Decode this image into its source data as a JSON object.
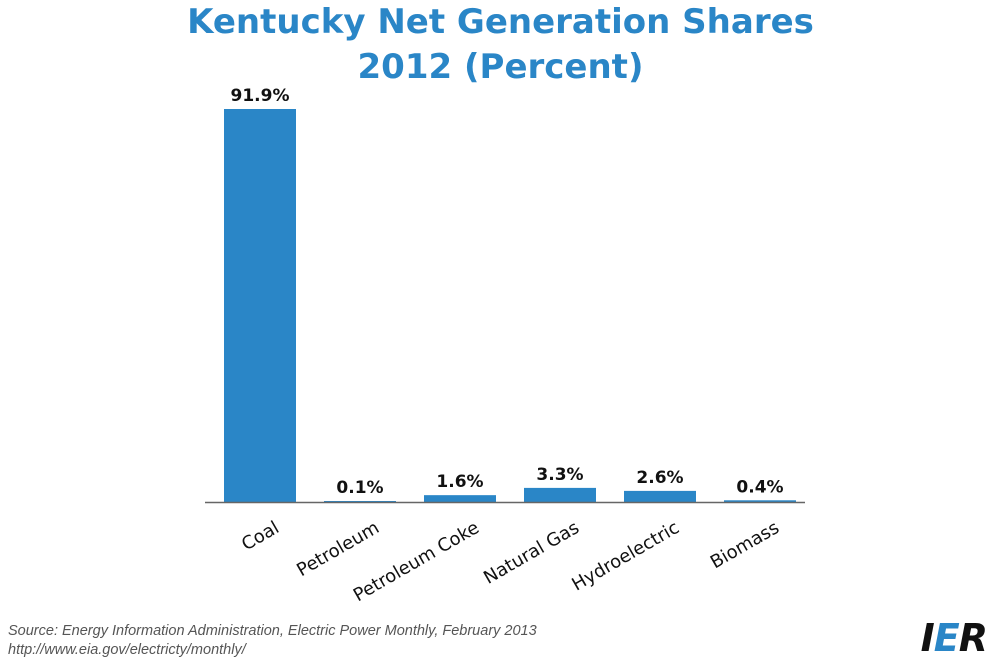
{
  "chart_data": {
    "type": "bar",
    "title_line1": "Kentucky Net Generation Shares",
    "title_line2": "2012 (Percent)",
    "categories": [
      "Coal",
      "Petroleum",
      "Petroleum Coke",
      "Natural Gas",
      "Hydroelectric",
      "Biomass"
    ],
    "values": [
      91.9,
      0.1,
      1.6,
      3.3,
      2.6,
      0.4
    ],
    "value_labels": [
      "91.9%",
      "0.1%",
      "1.6%",
      "3.3%",
      "2.6%",
      "0.4%"
    ],
    "ylim": [
      0,
      91.9
    ],
    "grid": false,
    "legend": "none",
    "bar_color": "#2a86c7",
    "axis_color": "#666666"
  },
  "footer": {
    "source_line1": "Source: Energy Information Administration, Electric Power Monthly, February 2013",
    "source_line2": "http://www.eia.gov/electricty/monthly/"
  },
  "logo": {
    "part1": "I",
    "part2": "E",
    "part3": "R"
  }
}
